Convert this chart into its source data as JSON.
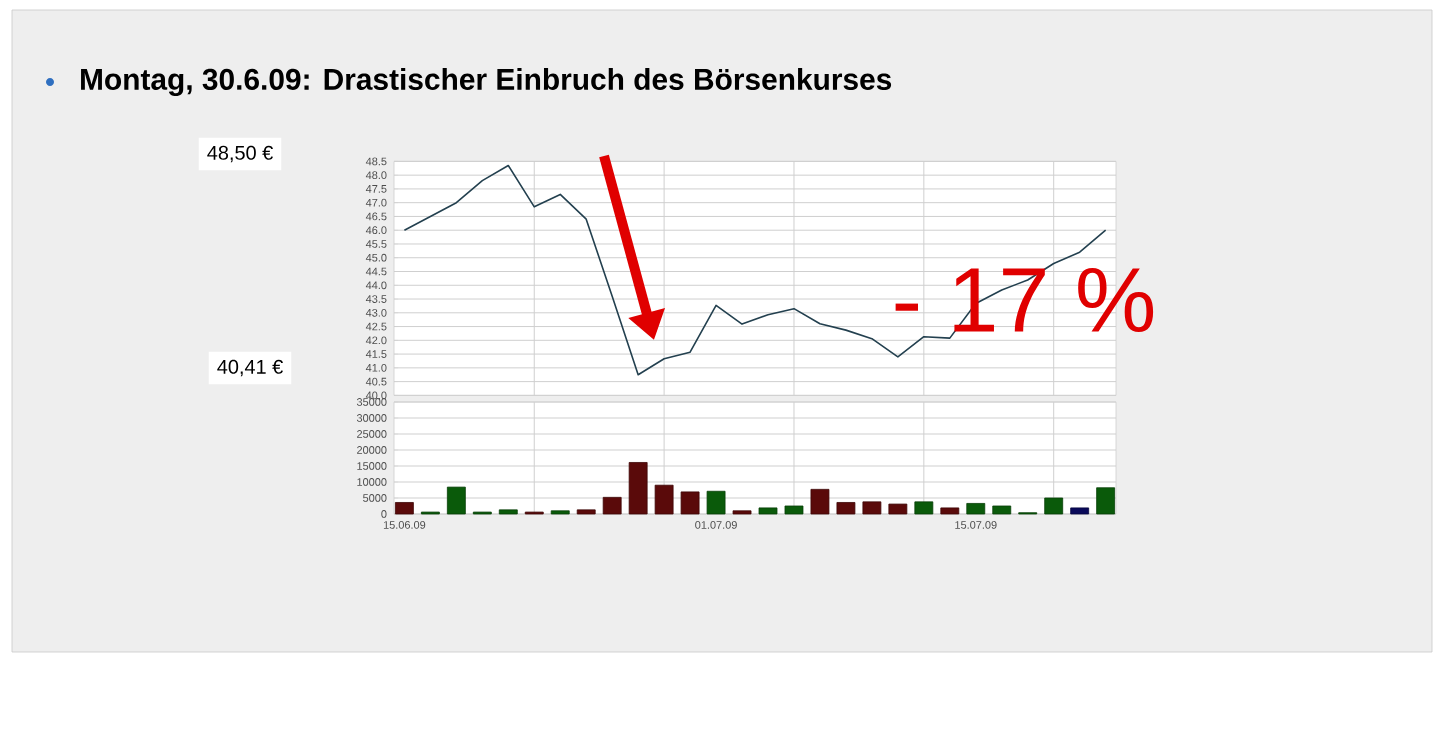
{
  "chart_data": [
    {
      "type": "line",
      "title": "Montag, 30.6.09: Drastischer Einbruch des Börsenkurses",
      "categories": [
        "15.06.09",
        null,
        null,
        null,
        null,
        null,
        null,
        null,
        null,
        null,
        null,
        null,
        "01.07.09",
        null,
        null,
        null,
        null,
        null,
        null,
        null,
        null,
        null,
        "15.07.09",
        null,
        null,
        null,
        null,
        null
      ],
      "series": [
        {
          "color": "#23404f",
          "values": [
            46.0,
            46.5,
            47.0,
            47.8,
            48.35,
            46.85,
            47.3,
            46.4,
            43.6,
            40.75,
            41.33,
            41.57,
            43.27,
            42.59,
            42.93,
            43.15,
            42.6,
            42.37,
            42.06,
            41.4,
            42.13,
            42.08,
            43.34,
            43.83,
            44.19,
            44.79,
            45.2,
            46.0
          ]
        }
      ],
      "ylim": [
        40.0,
        48.5
      ],
      "yticks": [
        {
          "value": 40.0,
          "label": "40.0"
        },
        {
          "value": 40.5,
          "label": "40.5"
        },
        {
          "value": 41.0,
          "label": "41.0"
        },
        {
          "value": 41.5,
          "label": "41.5"
        },
        {
          "value": 42.0,
          "label": "42.0"
        },
        {
          "value": 42.5,
          "label": "42.5"
        },
        {
          "value": 43.0,
          "label": "43.0"
        },
        {
          "value": 43.5,
          "label": "43.5"
        },
        {
          "value": 44.0,
          "label": "44.0"
        },
        {
          "value": 44.5,
          "label": "44.5"
        },
        {
          "value": 45.0,
          "label": "45.0"
        },
        {
          "value": 45.5,
          "label": "45.5"
        },
        {
          "value": 46.0,
          "label": "46.0"
        },
        {
          "value": 46.5,
          "label": "46.5"
        },
        {
          "value": 47.0,
          "label": "47.0"
        },
        {
          "value": 47.5,
          "label": "47.5"
        },
        {
          "value": 48.0,
          "label": "48.0"
        },
        {
          "value": 48.5,
          "label": "48.5"
        }
      ],
      "annotations": [
        "48,50 €",
        "40,41 €",
        "- 17 %"
      ],
      "grid": true,
      "tick_labels": "y",
      "marker": "none",
      "line_style": "solid"
    },
    {
      "type": "bar",
      "categories": [
        "15.06.09",
        null,
        null,
        null,
        null,
        null,
        null,
        null,
        null,
        null,
        null,
        null,
        "01.07.09",
        null,
        null,
        null,
        null,
        null,
        null,
        null,
        null,
        null,
        "15.07.09",
        null,
        null,
        null,
        null,
        null
      ],
      "values": [
        3600,
        600,
        8400,
        600,
        1300,
        600,
        1000,
        1300,
        5200,
        16100,
        9000,
        6900,
        7100,
        1000,
        1900,
        2500,
        7700,
        3600,
        3800,
        3100,
        3800,
        1900,
        3300,
        2500,
        400,
        5000,
        1900,
        8200
      ],
      "colors": [
        "#5a0a0a",
        "#0a5a0a",
        "#0a5a0a",
        "#0a5a0a",
        "#0a5a0a",
        "#5a0a0a",
        "#0a5a0a",
        "#5a0a0a",
        "#5a0a0a",
        "#5a0a0a",
        "#5a0a0a",
        "#5a0a0a",
        "#0a5a0a",
        "#5a0a0a",
        "#0a5a0a",
        "#0a5a0a",
        "#5a0a0a",
        "#5a0a0a",
        "#5a0a0a",
        "#5a0a0a",
        "#0a5a0a",
        "#5a0a0a",
        "#0a5a0a",
        "#0a5a0a",
        "#0a5a0a",
        "#0a5a0a",
        "#0a0a5a",
        "#0a5a0a"
      ],
      "ylim": [
        0,
        35000
      ],
      "yticks": [
        0,
        5000,
        10000,
        15000,
        20000,
        25000,
        30000,
        35000
      ],
      "grid": true
    }
  ]
}
